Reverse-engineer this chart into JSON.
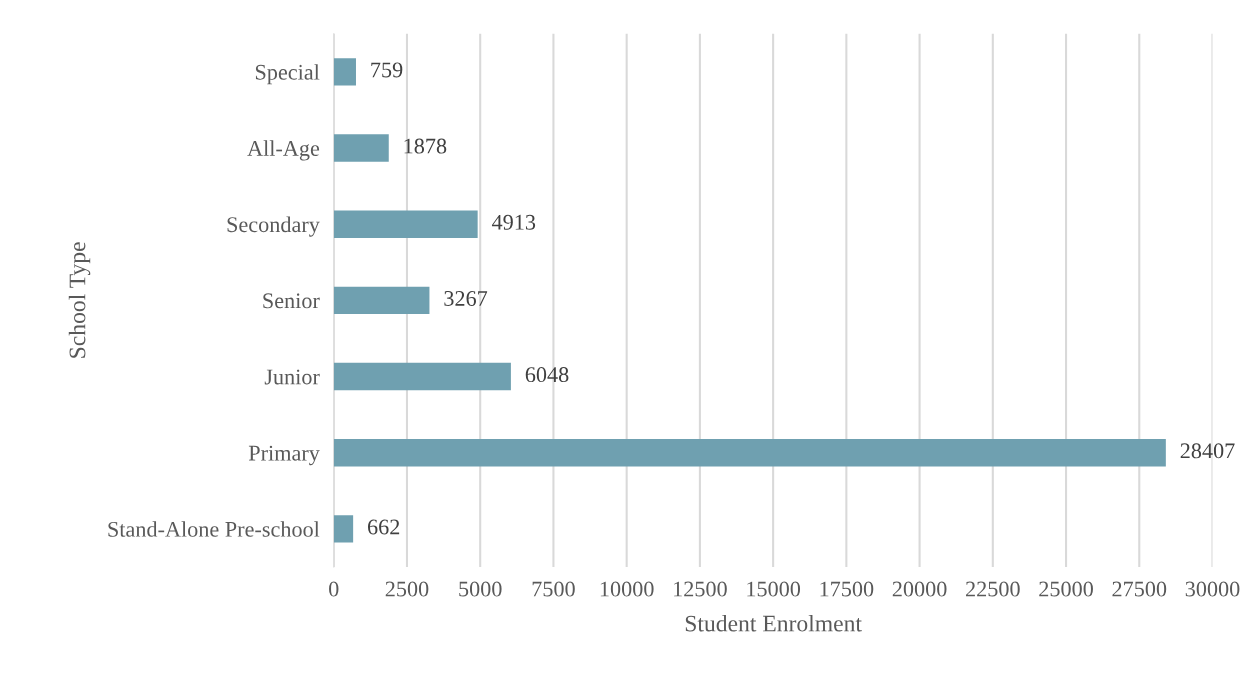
{
  "chart_data": {
    "type": "bar",
    "orientation": "horizontal",
    "categories": [
      "Special",
      "All-Age",
      "Secondary",
      "Senior",
      "Junior",
      "Primary",
      "Stand-Alone Pre-school"
    ],
    "values": [
      759,
      1878,
      4913,
      3267,
      6048,
      28407,
      662
    ],
    "color": "#6fa0b0",
    "xlabel": "Student Enrolment",
    "ylabel": "School Type",
    "xlim": [
      0,
      30000
    ],
    "xticks": [
      0,
      2500,
      5000,
      7500,
      10000,
      12500,
      15000,
      17500,
      20000,
      22500,
      25000,
      27500,
      30000
    ],
    "grid": "x",
    "data_labels": true
  }
}
